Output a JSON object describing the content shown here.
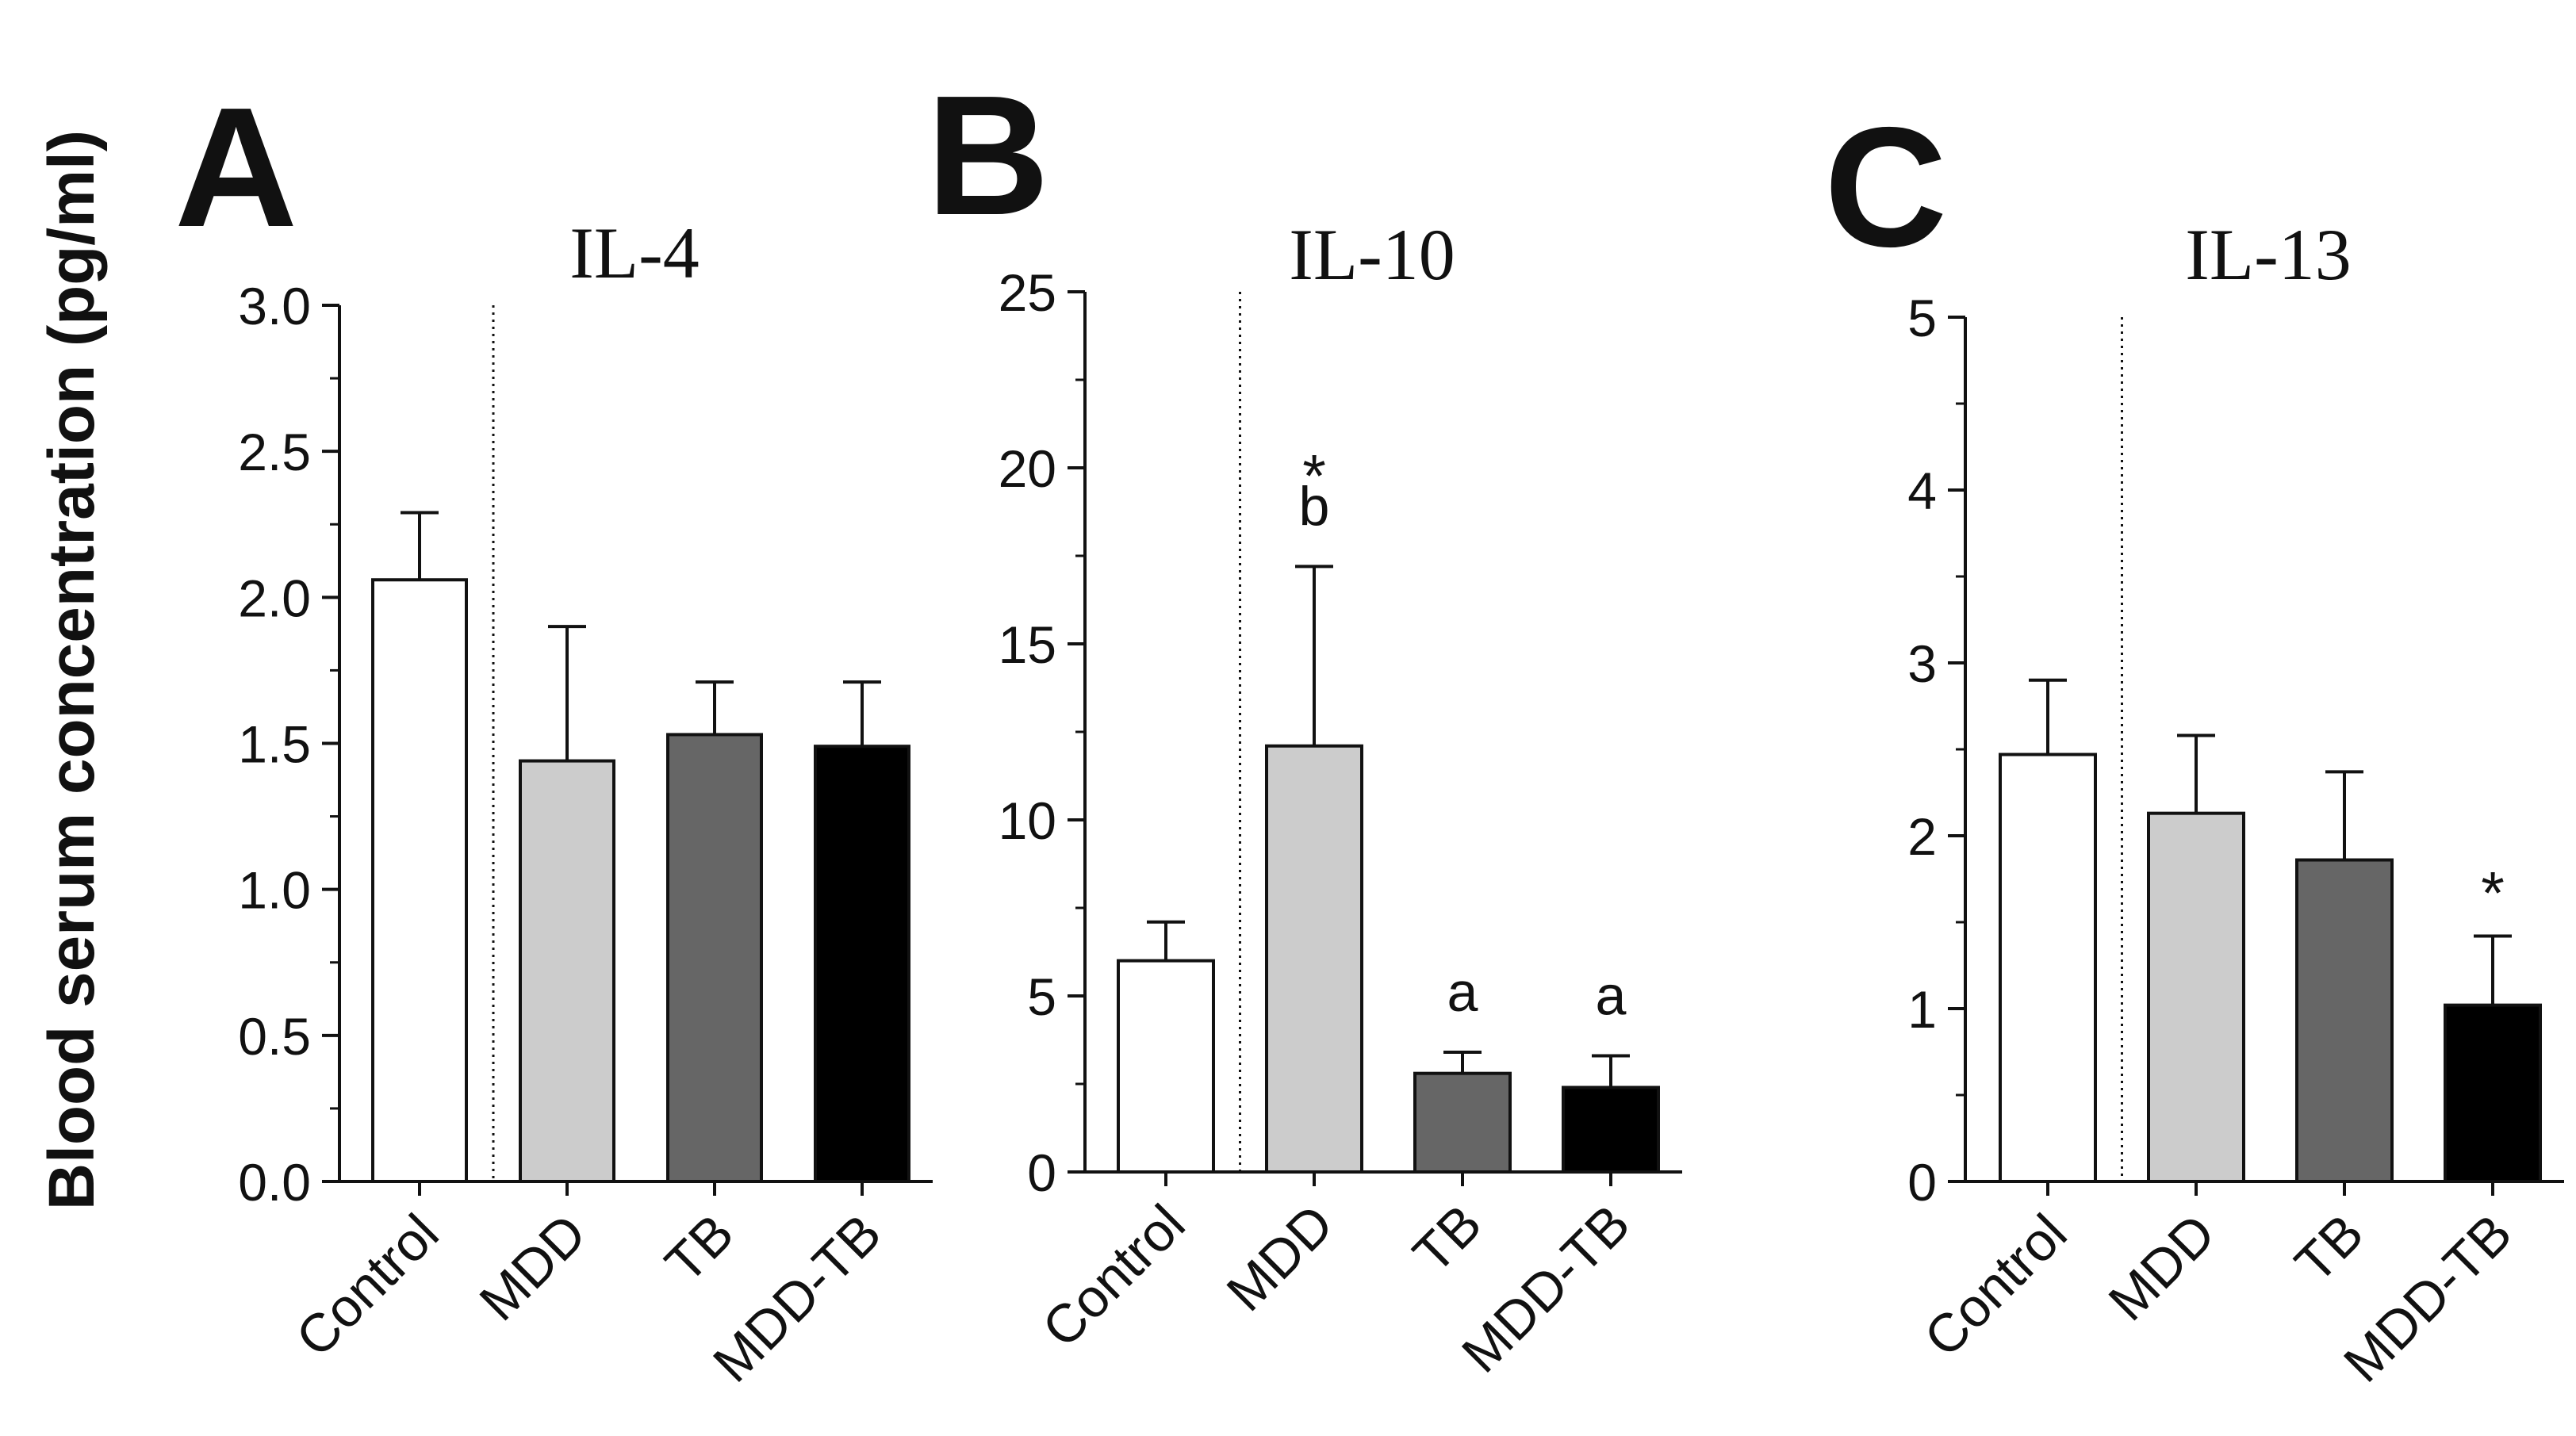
{
  "figure": {
    "y_axis_label": "Blood serum concentration (pg/ml)"
  },
  "chart_data": [
    {
      "type": "bar",
      "panel_letter": "A",
      "title": "IL-4",
      "categories": [
        "Control",
        "MDD",
        "TB",
        "MDD-TB"
      ],
      "values": [
        2.06,
        1.44,
        1.53,
        1.49
      ],
      "errors": [
        0.23,
        0.46,
        0.18,
        0.22
      ],
      "bar_colors": [
        "#ffffff",
        "#cccccc",
        "#666666",
        "#000000"
      ],
      "ylim": [
        0,
        3.0
      ],
      "yticks": [
        0,
        0.5,
        1.0,
        1.5,
        2.0,
        2.5,
        3.0
      ],
      "ytick_labels": [
        "0.0",
        "0.5",
        "1.0",
        "1.5",
        "2.0",
        "2.5",
        "3.0"
      ],
      "annotations": [
        [],
        [],
        [],
        []
      ],
      "separator_after_first": true
    },
    {
      "type": "bar",
      "panel_letter": "B",
      "title": "IL-10",
      "categories": [
        "Control",
        "MDD",
        "TB",
        "MDD-TB"
      ],
      "values": [
        6.0,
        12.1,
        2.8,
        2.4
      ],
      "errors": [
        1.1,
        5.1,
        0.6,
        0.9
      ],
      "bar_colors": [
        "#ffffff",
        "#cccccc",
        "#666666",
        "#000000"
      ],
      "ylim": [
        0,
        25
      ],
      "yticks": [
        0,
        5,
        10,
        15,
        20,
        25
      ],
      "ytick_labels": [
        "0",
        "5",
        "10",
        "15",
        "20",
        "25"
      ],
      "annotations": [
        [],
        [
          "b",
          "*"
        ],
        [
          "a"
        ],
        [
          "a"
        ]
      ],
      "separator_after_first": true
    },
    {
      "type": "bar",
      "panel_letter": "C",
      "title": "IL-13",
      "categories": [
        "Control",
        "MDD",
        "TB",
        "MDD-TB"
      ],
      "values": [
        2.47,
        2.13,
        1.86,
        1.02
      ],
      "errors": [
        0.43,
        0.45,
        0.51,
        0.4
      ],
      "bar_colors": [
        "#ffffff",
        "#cccccc",
        "#666666",
        "#000000"
      ],
      "ylim": [
        0,
        5
      ],
      "yticks": [
        0,
        1,
        2,
        3,
        4,
        5
      ],
      "ytick_labels": [
        "0",
        "1",
        "2",
        "3",
        "4",
        "5"
      ],
      "annotations": [
        [],
        [],
        [],
        [
          "*"
        ]
      ],
      "separator_after_first": true
    }
  ]
}
